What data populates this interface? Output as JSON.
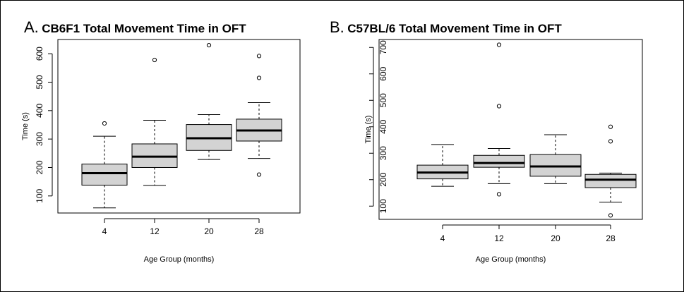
{
  "panels": [
    {
      "letter": "A.",
      "title": "CB6F1 Total Movement Time in OFT"
    },
    {
      "letter": "B.",
      "title": "C57BL/6 Total Movement Time in OFT"
    }
  ],
  "chart_data": [
    {
      "type": "box",
      "title": "CB6F1 Total Movement Time in OFT",
      "xlabel": "Age Group (months)",
      "ylabel": "Time (s)",
      "categories": [
        "4",
        "12",
        "20",
        "28"
      ],
      "yticks": [
        100,
        200,
        300,
        400,
        500,
        600
      ],
      "ylim": [
        40,
        650
      ],
      "box_color": "#d3d3d3",
      "boxes": [
        {
          "group": "4",
          "min": 58,
          "q1": 138,
          "median": 180,
          "q3": 212,
          "max": 310,
          "outliers": [
            355
          ]
        },
        {
          "group": "12",
          "min": 137,
          "q1": 200,
          "median": 238,
          "q3": 283,
          "max": 366,
          "outliers": [
            578
          ]
        },
        {
          "group": "20",
          "min": 228,
          "q1": 260,
          "median": 303,
          "q3": 351,
          "max": 386,
          "outliers": [
            630
          ]
        },
        {
          "group": "28",
          "min": 232,
          "q1": 293,
          "median": 330,
          "q3": 370,
          "max": 428,
          "outliers": [
            175,
            515,
            592
          ]
        }
      ]
    },
    {
      "type": "box",
      "title": "C57BL/6 Total Movement Time in OFT",
      "xlabel": "Age Group (months)",
      "ylabel": "Time (s)",
      "categories": [
        "4",
        "12",
        "20",
        "28"
      ],
      "yticks": [
        100,
        200,
        300,
        400,
        500,
        600,
        700
      ],
      "ylim": [
        50,
        730
      ],
      "box_color": "#d3d3d3",
      "boxes": [
        {
          "group": "4",
          "min": 175,
          "q1": 203,
          "median": 227,
          "q3": 255,
          "max": 333,
          "outliers": []
        },
        {
          "group": "12",
          "min": 185,
          "q1": 247,
          "median": 263,
          "q3": 292,
          "max": 318,
          "outliers": [
            145,
            478,
            710
          ]
        },
        {
          "group": "20",
          "min": 185,
          "q1": 213,
          "median": 250,
          "q3": 295,
          "max": 370,
          "outliers": []
        },
        {
          "group": "28",
          "min": 115,
          "q1": 170,
          "median": 200,
          "q3": 220,
          "max": 225,
          "outliers": [
            65,
            345,
            400
          ]
        }
      ]
    }
  ]
}
